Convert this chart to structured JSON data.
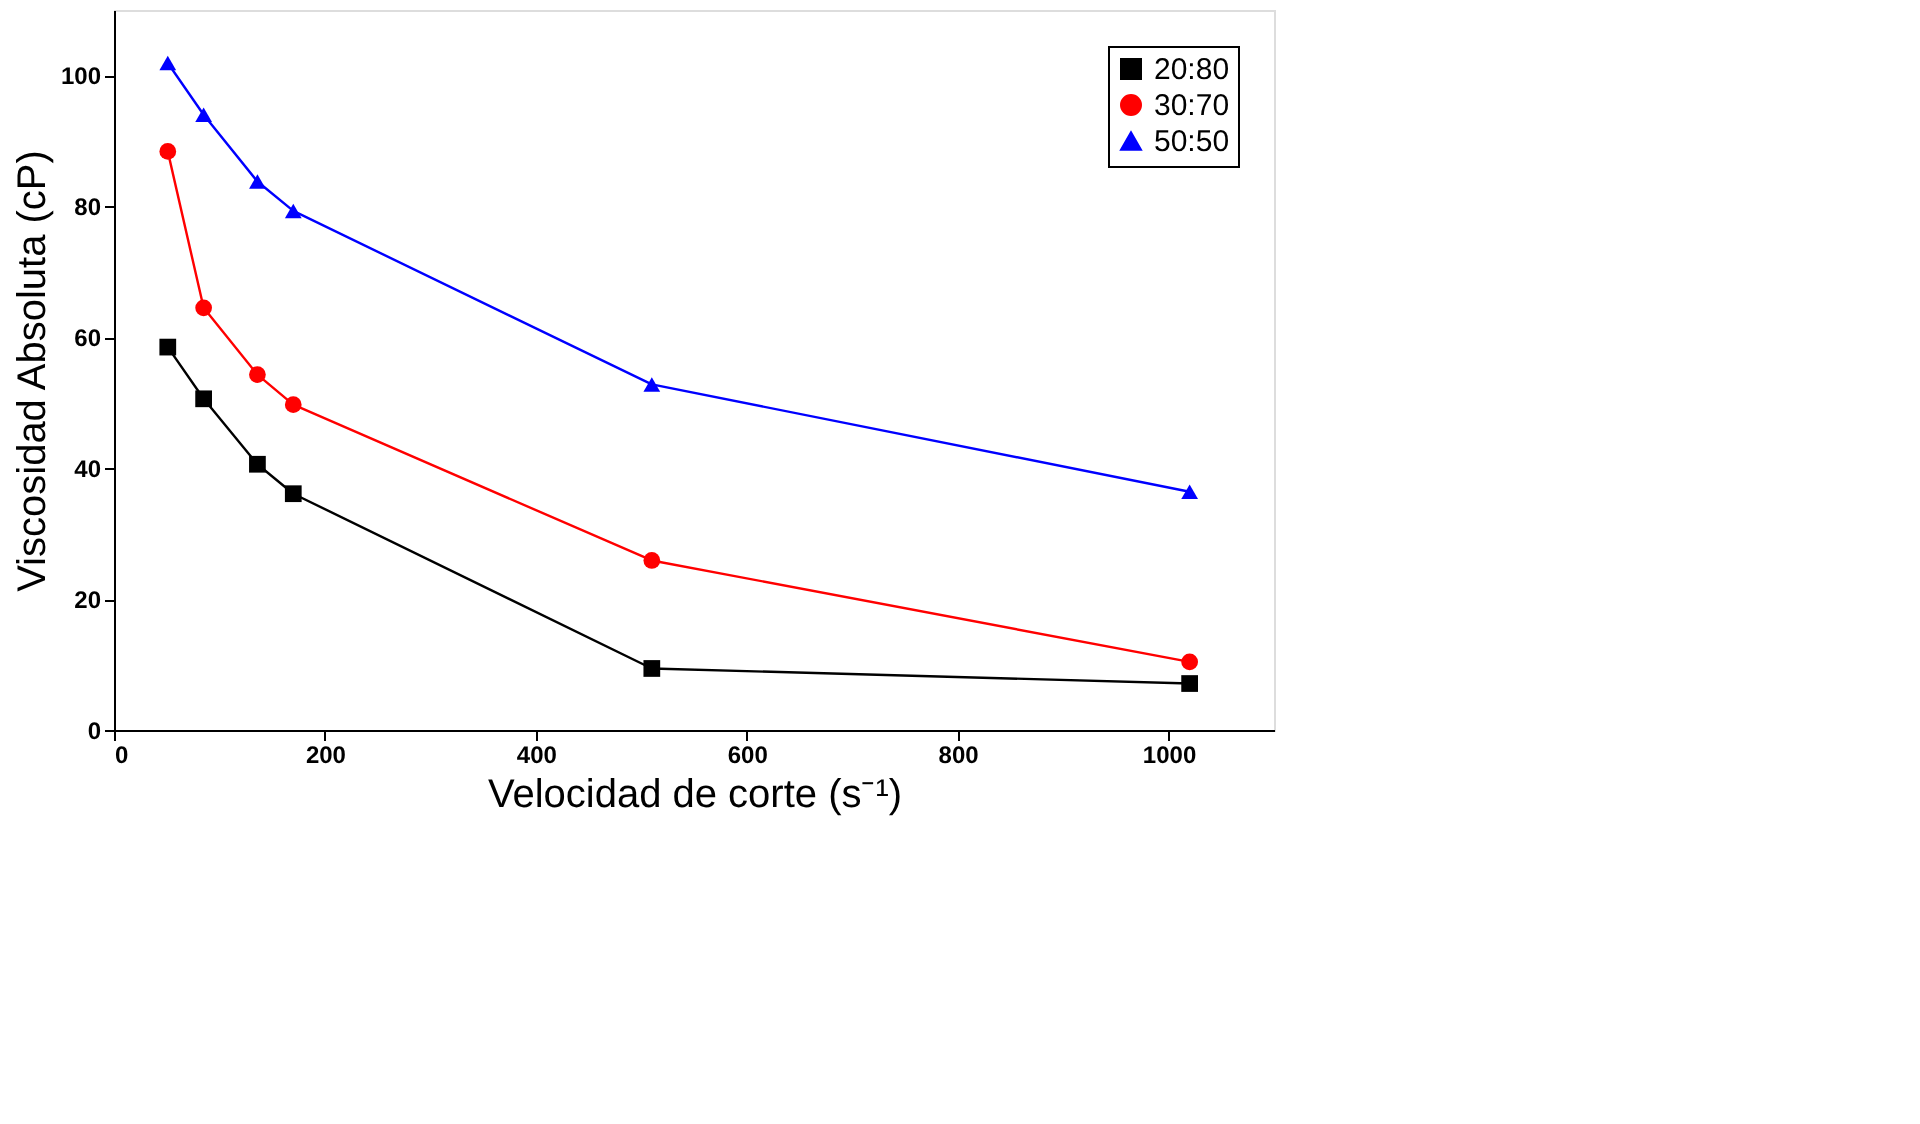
{
  "chart_data": {
    "type": "line",
    "xlabel": "Velocidad de corte (s⁻¹)",
    "ylabel": "Viscosidad Absoluta (cP)",
    "x": [
      51,
      85,
      136,
      170,
      510,
      1020
    ],
    "series": [
      {
        "name": "20:80",
        "color": "#000000",
        "marker": "square",
        "values": [
          58.5,
          50.6,
          40.6,
          36.1,
          9.4,
          7.1
        ]
      },
      {
        "name": "30:70",
        "color": "#ff0000",
        "marker": "circle",
        "values": [
          88.4,
          64.5,
          54.3,
          49.7,
          25.9,
          10.4
        ]
      },
      {
        "name": "50:50",
        "color": "#0000ff",
        "marker": "triangle",
        "values": [
          101.9,
          94.0,
          83.8,
          79.3,
          52.8,
          36.4
        ]
      }
    ],
    "xlim": [
      0,
      1100
    ],
    "xticks": [
      0,
      200,
      400,
      600,
      800,
      1000
    ],
    "ylim": [
      0,
      110
    ],
    "yticks": [
      0,
      20,
      40,
      60,
      80,
      100
    ],
    "grid": false,
    "legend": "top right",
    "line_style": "solid"
  }
}
